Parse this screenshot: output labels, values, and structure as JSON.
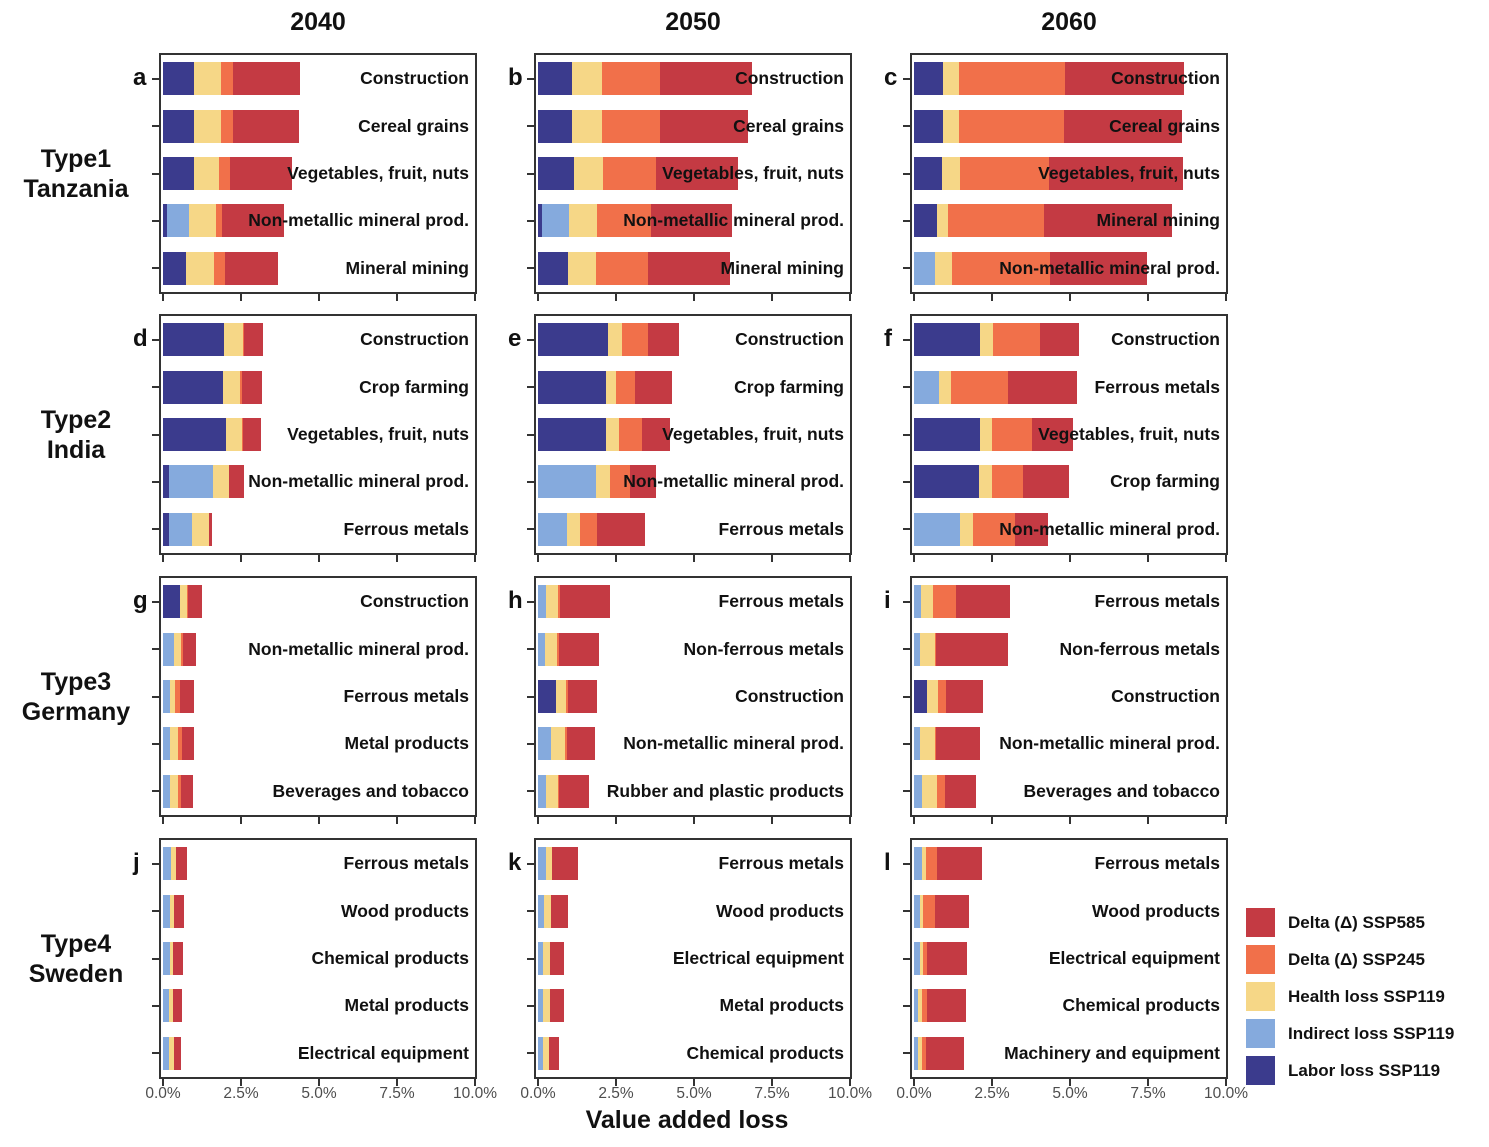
{
  "columns": [
    "2040",
    "2050",
    "2060"
  ],
  "rows": [
    {
      "type": "Type1",
      "country": "Tanzania"
    },
    {
      "type": "Type2",
      "country": "India"
    },
    {
      "type": "Type3",
      "country": "Germany"
    },
    {
      "type": "Type4",
      "country": "Sweden"
    }
  ],
  "x_axis": {
    "label": "Value added loss",
    "ticks": [
      "0.0%",
      "2.5%",
      "5.0%",
      "7.5%",
      "10.0%"
    ],
    "tick_values": [
      0,
      2.5,
      5,
      7.5,
      10
    ]
  },
  "legend": {
    "items": [
      {
        "label": "Delta (Δ) SSP585",
        "color": "#C43A43"
      },
      {
        "label": "Delta (Δ) SSP245",
        "color": "#F1704A"
      },
      {
        "label": "Health loss SSP119",
        "color": "#F6D787"
      },
      {
        "label": "Indirect loss SSP119",
        "color": "#85AADD"
      },
      {
        "label": "Labor loss SSP119",
        "color": "#3B3B8D"
      }
    ]
  },
  "chart_data": {
    "type": "bar",
    "stacked": true,
    "orientation": "horizontal",
    "unit": "percent of value added",
    "xlim": [
      0,
      10
    ],
    "series_order": [
      "Labor loss SSP119",
      "Indirect loss SSP119",
      "Health loss SSP119",
      "Delta (Δ) SSP245",
      "Delta (Δ) SSP585"
    ],
    "series_colors": [
      "#3B3B8D",
      "#85AADD",
      "#F6D787",
      "#F1704A",
      "#C43A43"
    ],
    "panels": [
      {
        "letter": "a",
        "group": "Type1 Tanzania",
        "year": "2040",
        "bars": [
          {
            "label": "Construction",
            "values": [
              1.0,
              0,
              0.85,
              0.4,
              2.15
            ]
          },
          {
            "label": "Cereal grains",
            "values": [
              1.0,
              0,
              0.85,
              0.4,
              2.1
            ]
          },
          {
            "label": "Vegetables, fruit, nuts",
            "values": [
              1.0,
              0,
              0.8,
              0.35,
              2.0
            ]
          },
          {
            "label": "Non-metallic mineral prod.",
            "values": [
              0.13,
              0.7,
              0.88,
              0.17,
              2.0
            ]
          },
          {
            "label": "Mineral mining",
            "values": [
              0.75,
              0,
              0.9,
              0.33,
              1.7
            ]
          }
        ]
      },
      {
        "letter": "b",
        "group": "Type1 Tanzania",
        "year": "2050",
        "bars": [
          {
            "label": "Construction",
            "values": [
              1.1,
              0,
              0.95,
              1.85,
              2.95
            ]
          },
          {
            "label": "Cereal grains",
            "values": [
              1.1,
              0,
              0.95,
              1.85,
              2.85
            ]
          },
          {
            "label": "Vegetables, fruit, nuts",
            "values": [
              1.15,
              0,
              0.95,
              1.7,
              2.6
            ]
          },
          {
            "label": "Non-metallic mineral prod.",
            "values": [
              0.13,
              0.85,
              0.9,
              1.74,
              2.6
            ]
          },
          {
            "label": "Mineral mining",
            "values": [
              0.95,
              0,
              0.9,
              1.68,
              2.64
            ]
          }
        ]
      },
      {
        "letter": "c",
        "group": "Type1 Tanzania",
        "year": "2060",
        "bars": [
          {
            "label": "Construction",
            "values": [
              0.93,
              0,
              0.51,
              3.4,
              3.8
            ]
          },
          {
            "label": "Cereal grains",
            "values": [
              0.93,
              0,
              0.51,
              3.38,
              3.78
            ]
          },
          {
            "label": "Vegetables, fruit, nuts",
            "values": [
              0.9,
              0,
              0.57,
              2.87,
              4.27
            ]
          },
          {
            "label": "Mineral mining",
            "values": [
              0.75,
              0,
              0.34,
              3.08,
              4.09
            ]
          },
          {
            "label": "Non-metallic mineral prod.",
            "values": [
              0,
              0.67,
              0.56,
              3.13,
              3.12
            ]
          }
        ]
      },
      {
        "letter": "d",
        "group": "Type2 India",
        "year": "2040",
        "bars": [
          {
            "label": "Construction",
            "values": [
              1.94,
              0,
              0.61,
              0.05,
              0.6
            ]
          },
          {
            "label": "Crop farming",
            "values": [
              1.92,
              0,
              0.56,
              0.05,
              0.65
            ]
          },
          {
            "label": "Vegetables, fruit, nuts",
            "values": [
              2.02,
              0,
              0.5,
              0.05,
              0.58
            ]
          },
          {
            "label": "Non-metallic mineral prod.",
            "values": [
              0.2,
              1.4,
              0.53,
              0,
              0.46
            ]
          },
          {
            "label": "Ferrous metals",
            "values": [
              0.2,
              0.72,
              0.57,
              0,
              0.07
            ]
          }
        ]
      },
      {
        "letter": "e",
        "group": "Type2 India",
        "year": "2050",
        "bars": [
          {
            "label": "Construction",
            "values": [
              2.23,
              0,
              0.46,
              0.83,
              1.0
            ]
          },
          {
            "label": "Crop farming",
            "values": [
              2.18,
              0,
              0.32,
              0.6,
              1.2
            ]
          },
          {
            "label": "Vegetables, fruit, nuts",
            "values": [
              2.19,
              0,
              0.4,
              0.75,
              0.89
            ]
          },
          {
            "label": "Non-metallic mineral prod.",
            "values": [
              0,
              1.87,
              0.43,
              0.66,
              0.82
            ]
          },
          {
            "label": "Ferrous metals",
            "values": [
              0,
              0.93,
              0.41,
              0.56,
              1.53
            ]
          }
        ]
      },
      {
        "letter": "f",
        "group": "Type2 India",
        "year": "2060",
        "bars": [
          {
            "label": "Construction",
            "values": [
              2.12,
              0,
              0.4,
              1.53,
              1.23
            ]
          },
          {
            "label": "Ferrous metals",
            "values": [
              0,
              0.8,
              0.37,
              1.85,
              2.21
            ]
          },
          {
            "label": "Vegetables, fruit, nuts",
            "values": [
              2.1,
              0,
              0.41,
              1.26,
              1.34
            ]
          },
          {
            "label": "Crop farming",
            "values": [
              2.08,
              0,
              0.41,
              1.01,
              1.46
            ]
          },
          {
            "label": "Non-metallic mineral prod.",
            "values": [
              0,
              1.47,
              0.43,
              1.34,
              1.07
            ]
          }
        ]
      },
      {
        "letter": "g",
        "group": "Type3 Germany",
        "year": "2040",
        "bars": [
          {
            "label": "Construction",
            "values": [
              0.53,
              0,
              0.24,
              0.02,
              0.45
            ]
          },
          {
            "label": "Non-metallic mineral prod.",
            "values": [
              0,
              0.36,
              0.22,
              0.07,
              0.41
            ]
          },
          {
            "label": "Ferrous metals",
            "values": [
              0,
              0.21,
              0.18,
              0.14,
              0.45
            ]
          },
          {
            "label": "Metal products",
            "values": [
              0,
              0.21,
              0.26,
              0.14,
              0.37
            ]
          },
          {
            "label": "Beverages and tobacco",
            "values": [
              0,
              0.21,
              0.26,
              0.11,
              0.38
            ]
          }
        ]
      },
      {
        "letter": "h",
        "group": "Type3 Germany",
        "year": "2050",
        "bars": [
          {
            "label": "Ferrous metals",
            "values": [
              0,
              0.26,
              0.38,
              0.07,
              1.6
            ]
          },
          {
            "label": "Non-ferrous metals",
            "values": [
              0,
              0.21,
              0.4,
              0.05,
              1.28
            ]
          },
          {
            "label": "Construction",
            "values": [
              0.56,
              0,
              0.34,
              0.05,
              0.94
            ]
          },
          {
            "label": "Non-metallic mineral prod.",
            "values": [
              0,
              0.4,
              0.45,
              0.09,
              0.89
            ]
          },
          {
            "label": "Rubber and plastic products",
            "values": [
              0,
              0.27,
              0.36,
              0.05,
              0.97
            ]
          }
        ]
      },
      {
        "letter": "i",
        "group": "Type3 Germany",
        "year": "2060",
        "bars": [
          {
            "label": "Ferrous metals",
            "values": [
              0,
              0.21,
              0.4,
              0.75,
              1.71
            ]
          },
          {
            "label": "Non-ferrous metals",
            "values": [
              0,
              0.19,
              0.5,
              0.03,
              2.3
            ]
          },
          {
            "label": "Construction",
            "values": [
              0.4,
              0,
              0.38,
              0.24,
              1.2
            ]
          },
          {
            "label": "Non-metallic mineral prod.",
            "values": [
              0,
              0.18,
              0.48,
              0.06,
              1.39
            ]
          },
          {
            "label": "Beverages and tobacco",
            "values": [
              0,
              0.27,
              0.48,
              0.25,
              0.98
            ]
          }
        ]
      },
      {
        "letter": "j",
        "group": "Type4 Sweden",
        "year": "2040",
        "bars": [
          {
            "label": "Ferrous metals",
            "values": [
              0,
              0.27,
              0.16,
              0,
              0.35
            ]
          },
          {
            "label": "Wood products",
            "values": [
              0,
              0.23,
              0.12,
              0,
              0.32
            ]
          },
          {
            "label": "Chemical products",
            "values": [
              0,
              0.21,
              0.11,
              0,
              0.32
            ]
          },
          {
            "label": "Metal products",
            "values": [
              0,
              0.19,
              0.13,
              0,
              0.29
            ]
          },
          {
            "label": "Electrical equipment",
            "values": [
              0,
              0.19,
              0.15,
              0,
              0.25
            ]
          }
        ]
      },
      {
        "letter": "k",
        "group": "Type4 Sweden",
        "year": "2050",
        "bars": [
          {
            "label": "Ferrous metals",
            "values": [
              0,
              0.25,
              0.21,
              0,
              0.82
            ]
          },
          {
            "label": "Wood products",
            "values": [
              0,
              0.19,
              0.23,
              0,
              0.54
            ]
          },
          {
            "label": "Electrical equipment",
            "values": [
              0,
              0.16,
              0.23,
              0,
              0.44
            ]
          },
          {
            "label": "Metal products",
            "values": [
              0,
              0.16,
              0.23,
              0,
              0.43
            ]
          },
          {
            "label": "Chemical products",
            "values": [
              0,
              0.16,
              0.19,
              0,
              0.32
            ]
          }
        ]
      },
      {
        "letter": "l",
        "group": "Type4 Sweden",
        "year": "2060",
        "bars": [
          {
            "label": "Ferrous metals",
            "values": [
              0,
              0.25,
              0.13,
              0.37,
              1.44
            ]
          },
          {
            "label": "Wood products",
            "values": [
              0,
              0.19,
              0.11,
              0.37,
              1.09
            ]
          },
          {
            "label": "Electrical equipment",
            "values": [
              0,
              0.18,
              0.11,
              0.12,
              1.28
            ]
          },
          {
            "label": "Chemical products",
            "values": [
              0,
              0.14,
              0.11,
              0.16,
              1.25
            ]
          },
          {
            "label": "Machinery and equipment",
            "values": [
              0,
              0.13,
              0.12,
              0.15,
              1.21
            ]
          }
        ]
      }
    ]
  }
}
